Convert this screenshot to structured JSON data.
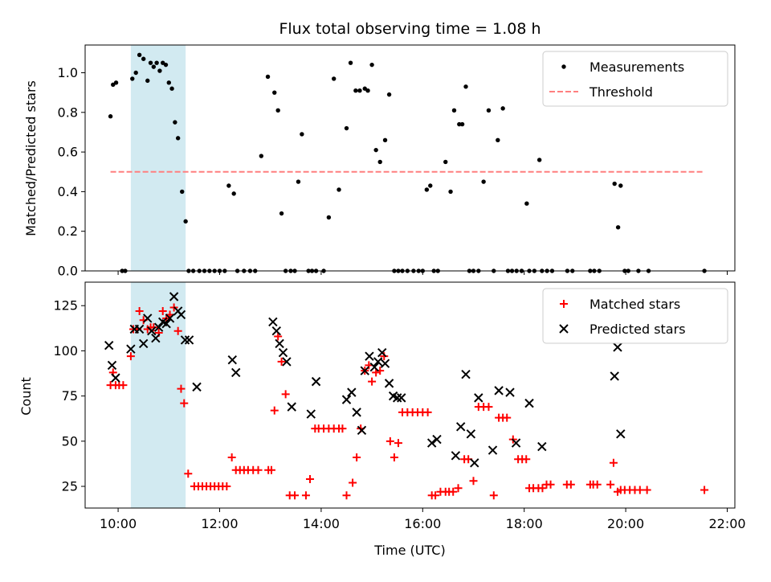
{
  "chart_data": [
    {
      "type": "scatter",
      "title": "Flux total observing time = 1.08 h",
      "xlabel": "",
      "ylabel": "Matched/Predicted stars",
      "xlim": [
        9.35,
        22.15
      ],
      "ylim": [
        0,
        1.14
      ],
      "yticks": [
        0.0,
        0.2,
        0.4,
        0.6,
        0.8,
        1.0
      ],
      "ytick_labels": [
        "0.0",
        "0.2",
        "0.4",
        "0.6",
        "0.8",
        "1.0"
      ],
      "xticks": [
        10,
        12,
        14,
        16,
        18,
        20,
        22
      ],
      "shaded_span": {
        "x": [
          10.25,
          11.33
        ],
        "color": "#add8e6"
      },
      "legend_position": "upper right",
      "series": [
        {
          "name": "Measurements",
          "marker": "dot",
          "color": "#000000",
          "x": [
            9.85,
            9.9,
            9.96,
            10.08,
            10.14,
            10.28,
            10.35,
            10.42,
            10.5,
            10.58,
            10.64,
            10.7,
            10.76,
            10.82,
            10.88,
            10.94,
            11.0,
            11.06,
            11.12,
            11.18,
            11.26,
            11.33,
            11.39,
            11.48,
            11.6,
            11.7,
            11.8,
            11.9,
            12.0,
            12.1,
            12.18,
            12.28,
            12.35,
            12.48,
            12.6,
            12.7,
            12.82,
            12.95,
            13.08,
            13.15,
            13.22,
            13.3,
            13.4,
            13.48,
            13.55,
            13.62,
            13.75,
            13.82,
            13.9,
            14.05,
            14.15,
            14.25,
            14.35,
            14.5,
            14.58,
            14.68,
            14.76,
            14.86,
            14.92,
            15.0,
            15.08,
            15.16,
            15.26,
            15.34,
            15.44,
            15.52,
            15.6,
            15.7,
            15.82,
            15.92,
            16.0,
            16.08,
            16.15,
            16.22,
            16.3,
            16.45,
            16.55,
            16.62,
            16.72,
            16.78,
            16.85,
            16.92,
            17.0,
            17.1,
            17.2,
            17.3,
            17.4,
            17.48,
            17.58,
            17.68,
            17.76,
            17.85,
            17.95,
            18.05,
            18.1,
            18.2,
            18.3,
            18.35,
            18.45,
            18.55,
            18.85,
            18.95,
            19.3,
            19.38,
            19.48,
            19.78,
            19.85,
            19.9,
            19.98,
            20.05,
            20.25,
            20.45,
            21.55
          ],
          "y": [
            0.78,
            0.94,
            0.95,
            0.0,
            0.0,
            0.97,
            1.0,
            1.09,
            1.07,
            0.96,
            1.05,
            1.03,
            1.05,
            1.01,
            1.05,
            1.04,
            0.95,
            0.92,
            0.75,
            0.67,
            0.4,
            0.25,
            0.0,
            0.0,
            0.0,
            0.0,
            0.0,
            0.0,
            0.0,
            0.0,
            0.43,
            0.39,
            0.0,
            0.0,
            0.0,
            0.0,
            0.58,
            0.98,
            0.9,
            0.81,
            0.29,
            0.0,
            0.0,
            0.0,
            0.45,
            0.69,
            0.0,
            0.0,
            0.0,
            0.0,
            0.27,
            0.97,
            0.41,
            0.72,
            1.05,
            0.91,
            0.91,
            0.92,
            0.91,
            1.04,
            0.61,
            0.55,
            0.66,
            0.89,
            0.0,
            0.0,
            0.0,
            0.0,
            0.0,
            0.0,
            0.0,
            0.41,
            0.43,
            0.0,
            0.0,
            0.55,
            0.4,
            0.81,
            0.74,
            0.74,
            0.93,
            0.0,
            0.0,
            0.0,
            0.45,
            0.81,
            0.0,
            0.66,
            0.82,
            0.0,
            0.0,
            0.0,
            0.0,
            0.34,
            0.0,
            0.0,
            0.56,
            0.0,
            0.0,
            0.0,
            0.0,
            0.0,
            0.0,
            0.0,
            0.0,
            0.44,
            0.22,
            0.43,
            0.0,
            0.0,
            0.0,
            0.0,
            0.0
          ]
        },
        {
          "name": "Threshold",
          "marker": "dashed-line",
          "color": "#ff7f7f",
          "x": [
            9.85,
            21.55
          ],
          "y": [
            0.5,
            0.5
          ]
        }
      ]
    },
    {
      "type": "scatter",
      "title": "",
      "xlabel": "Time (UTC)",
      "ylabel": "Count",
      "xlim": [
        9.35,
        22.15
      ],
      "ylim": [
        13,
        138
      ],
      "yticks": [
        25,
        50,
        75,
        100,
        125
      ],
      "ytick_labels": [
        "25",
        "50",
        "75",
        "100",
        "125"
      ],
      "xticks": [
        10,
        12,
        14,
        16,
        18,
        20,
        22
      ],
      "xtick_labels": [
        "10:00",
        "12:00",
        "14:00",
        "16:00",
        "18:00",
        "20:00",
        "22:00"
      ],
      "shaded_span": {
        "x": [
          10.25,
          11.33
        ],
        "color": "#add8e6"
      },
      "legend_position": "upper right",
      "series": [
        {
          "name": "Matched stars",
          "marker": "plus",
          "color": "#ff0000",
          "x": [
            9.85,
            9.9,
            9.95,
            10.02,
            10.1,
            10.25,
            10.3,
            10.38,
            10.42,
            10.5,
            10.58,
            10.64,
            10.7,
            10.8,
            10.88,
            10.95,
            11.02,
            11.1,
            11.18,
            11.24,
            11.3,
            11.38,
            11.5,
            11.58,
            11.66,
            11.74,
            11.82,
            11.9,
            11.98,
            12.06,
            12.14,
            12.24,
            12.32,
            12.4,
            12.48,
            12.56,
            12.66,
            12.76,
            12.96,
            13.02,
            13.08,
            13.15,
            13.22,
            13.3,
            13.38,
            13.48,
            13.7,
            13.78,
            13.88,
            13.95,
            14.05,
            14.15,
            14.25,
            14.35,
            14.42,
            14.5,
            14.62,
            14.7,
            14.78,
            14.86,
            14.94,
            15.0,
            15.08,
            15.16,
            15.24,
            15.36,
            15.44,
            15.52,
            15.6,
            15.7,
            15.8,
            15.9,
            16.0,
            16.1,
            16.18,
            16.25,
            16.35,
            16.45,
            16.52,
            16.6,
            16.7,
            16.82,
            16.9,
            17.0,
            17.1,
            17.2,
            17.3,
            17.4,
            17.5,
            17.58,
            17.66,
            17.78,
            17.88,
            17.96,
            18.04,
            18.1,
            18.18,
            18.28,
            18.36,
            18.44,
            18.52,
            18.84,
            18.92,
            19.3,
            19.36,
            19.44,
            19.7,
            19.76,
            19.84,
            19.9,
            19.98,
            20.08,
            20.18,
            20.28,
            20.42,
            21.55
          ],
          "y": [
            81,
            88,
            81,
            81,
            81,
            97,
            112,
            112,
            122,
            117,
            112,
            113,
            113,
            110,
            122,
            118,
            120,
            124,
            111,
            79,
            71,
            32,
            25,
            25,
            25,
            25,
            25,
            25,
            25,
            25,
            25,
            41,
            34,
            34,
            34,
            34,
            34,
            34,
            34,
            34,
            67,
            108,
            94,
            76,
            20,
            20,
            20,
            29,
            57,
            57,
            57,
            57,
            57,
            57,
            57,
            20,
            27,
            41,
            57,
            89,
            92,
            83,
            88,
            89,
            97,
            50,
            41,
            49,
            66,
            66,
            66,
            66,
            66,
            66,
            20,
            20,
            22,
            22,
            22,
            22,
            24,
            40,
            40,
            28,
            69,
            69,
            69,
            20,
            63,
            63,
            63,
            51,
            40,
            40,
            40,
            24,
            24,
            24,
            24,
            26,
            26,
            26,
            26,
            26,
            26,
            26,
            26,
            38,
            22,
            23,
            23,
            23,
            23,
            23,
            23,
            23
          ]
        },
        {
          "name": "Predicted stars",
          "marker": "x",
          "color": "#000000",
          "x": [
            9.82,
            9.88,
            9.95,
            10.25,
            10.32,
            10.42,
            10.5,
            10.58,
            10.66,
            10.74,
            10.8,
            10.88,
            10.95,
            11.02,
            11.1,
            11.18,
            11.24,
            11.32,
            11.4,
            11.55,
            12.25,
            12.32,
            13.05,
            13.12,
            13.18,
            13.25,
            13.32,
            13.42,
            13.8,
            13.9,
            14.5,
            14.6,
            14.7,
            14.8,
            14.86,
            14.95,
            15.05,
            15.12,
            15.2,
            15.26,
            15.34,
            15.42,
            15.5,
            15.58,
            16.18,
            16.28,
            16.65,
            16.75,
            16.85,
            16.95,
            17.02,
            17.1,
            17.38,
            17.5,
            17.72,
            17.84,
            18.1,
            18.35,
            19.78,
            19.84,
            19.9
          ],
          "y": [
            103,
            92,
            85,
            101,
            112,
            112,
            104,
            118,
            111,
            107,
            113,
            116,
            115,
            118,
            130,
            122,
            120,
            106,
            106,
            80,
            95,
            88,
            116,
            111,
            104,
            99,
            94,
            69,
            65,
            83,
            73,
            77,
            66,
            56,
            89,
            97,
            91,
            94,
            99,
            93,
            82,
            75,
            74,
            74,
            49,
            51,
            42,
            58,
            87,
            54,
            38,
            74,
            45,
            78,
            77,
            49,
            71,
            47,
            86,
            102,
            54
          ]
        }
      ]
    }
  ]
}
